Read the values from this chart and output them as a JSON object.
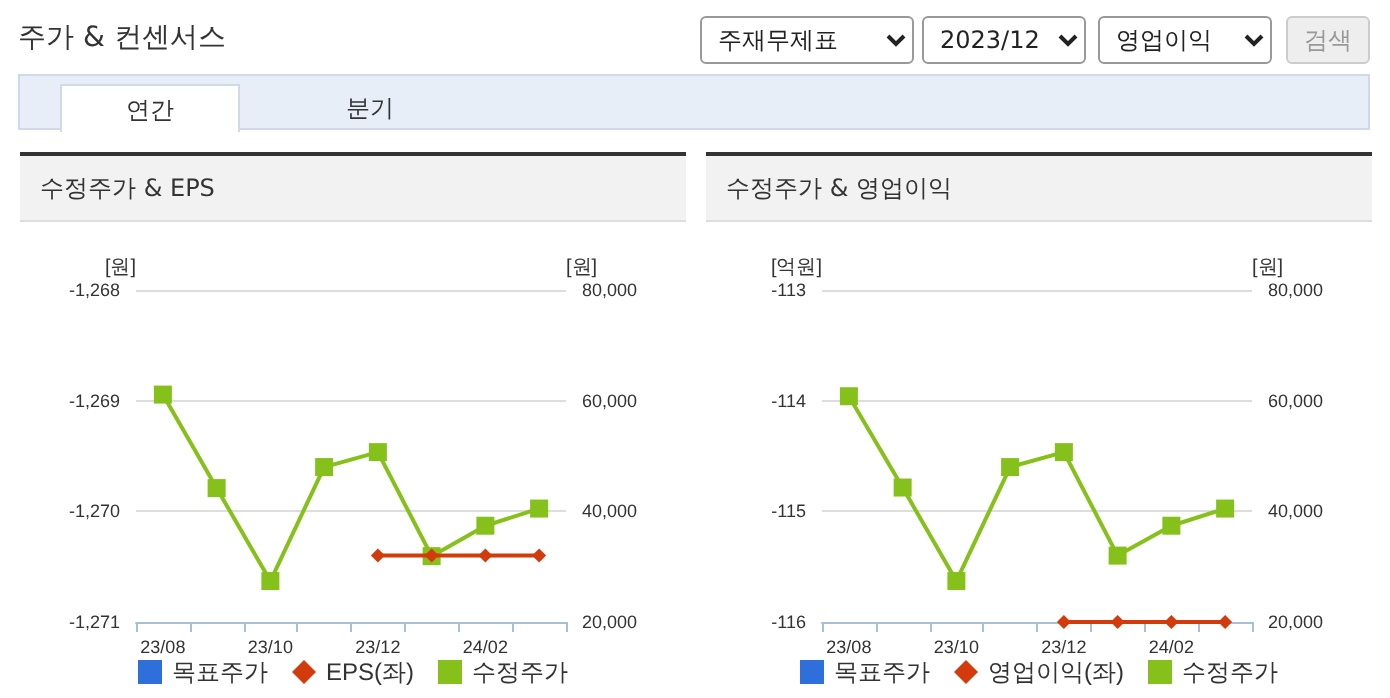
{
  "chart_data": [
    {
      "type": "other",
      "title": "주가 & 컨센서스",
      "annotations": [
        "주재무제표",
        "2023/12",
        "영업이익",
        "검색",
        "연간",
        "분기"
      ]
    },
    {
      "type": "line",
      "title": "수정주가 & EPS",
      "ylabel": "[원]",
      "y2label": "[원]",
      "categories": [
        "23/08",
        null,
        "23/10",
        null,
        "23/12",
        null,
        "24/02",
        null
      ],
      "series": [
        {
          "name": "목표주가",
          "type": "bar",
          "color": "#2f6fdc",
          "values": [
            null,
            null,
            null,
            null,
            null,
            null,
            null,
            null
          ]
        },
        {
          "name": "EPS(좌)",
          "type": "line",
          "marker": "diamond",
          "color": "#d33a0c",
          "values": [
            null,
            null,
            null,
            null,
            -1270.4,
            -1270.4,
            -1270.4,
            -1270.4
          ]
        },
        {
          "name": "수정주가",
          "type": "line",
          "marker": "square",
          "axis": "y2",
          "color": "#86c01a",
          "values": [
            61100,
            44200,
            27400,
            48000,
            50700,
            31900,
            37400,
            40500
          ]
        }
      ],
      "ylim": [
        -1271,
        -1268
      ],
      "yticks": [
        {
          "value": -1271,
          "label": "-1,271"
        },
        {
          "value": -1270,
          "label": "-1,270"
        },
        {
          "value": -1269,
          "label": "-1,269"
        },
        {
          "value": -1268,
          "label": "-1,268"
        }
      ],
      "y2lim": [
        20000,
        80000
      ],
      "y2ticks": [
        {
          "value": 20000,
          "label": "20,000"
        },
        {
          "value": 40000,
          "label": "40,000"
        },
        {
          "value": 60000,
          "label": "60,000"
        },
        {
          "value": 80000,
          "label": "80,000"
        }
      ],
      "grid": "y",
      "legend": "bottom"
    },
    {
      "type": "line",
      "title": "수정주가 & 영업이익",
      "ylabel": "[억원]",
      "y2label": "[원]",
      "categories": [
        "23/08",
        null,
        "23/10",
        null,
        "23/12",
        null,
        "24/02",
        null
      ],
      "series": [
        {
          "name": "목표주가",
          "type": "bar",
          "color": "#2f6fdc",
          "values": [
            null,
            null,
            null,
            null,
            null,
            null,
            null,
            null
          ]
        },
        {
          "name": "영업이익(좌)",
          "type": "line",
          "marker": "diamond",
          "color": "#d33a0c",
          "values": [
            null,
            null,
            null,
            null,
            -116,
            -116,
            -116,
            -116
          ]
        },
        {
          "name": "수정주가",
          "type": "line",
          "marker": "square",
          "axis": "y2",
          "color": "#86c01a",
          "values": [
            60800,
            44300,
            27400,
            48000,
            50700,
            32000,
            37400,
            40500
          ]
        }
      ],
      "ylim": [
        -116,
        -113
      ],
      "yticks": [
        -116,
        -115,
        -114,
        -113
      ],
      "y2lim": [
        20000,
        80000
      ],
      "y2ticks": [
        {
          "value": 20000,
          "label": "20,000"
        },
        {
          "value": 40000,
          "label": "40,000"
        },
        {
          "value": 60000,
          "label": "60,000"
        },
        {
          "value": 80000,
          "label": "80,000"
        }
      ],
      "grid": "y",
      "legend": "bottom"
    }
  ]
}
